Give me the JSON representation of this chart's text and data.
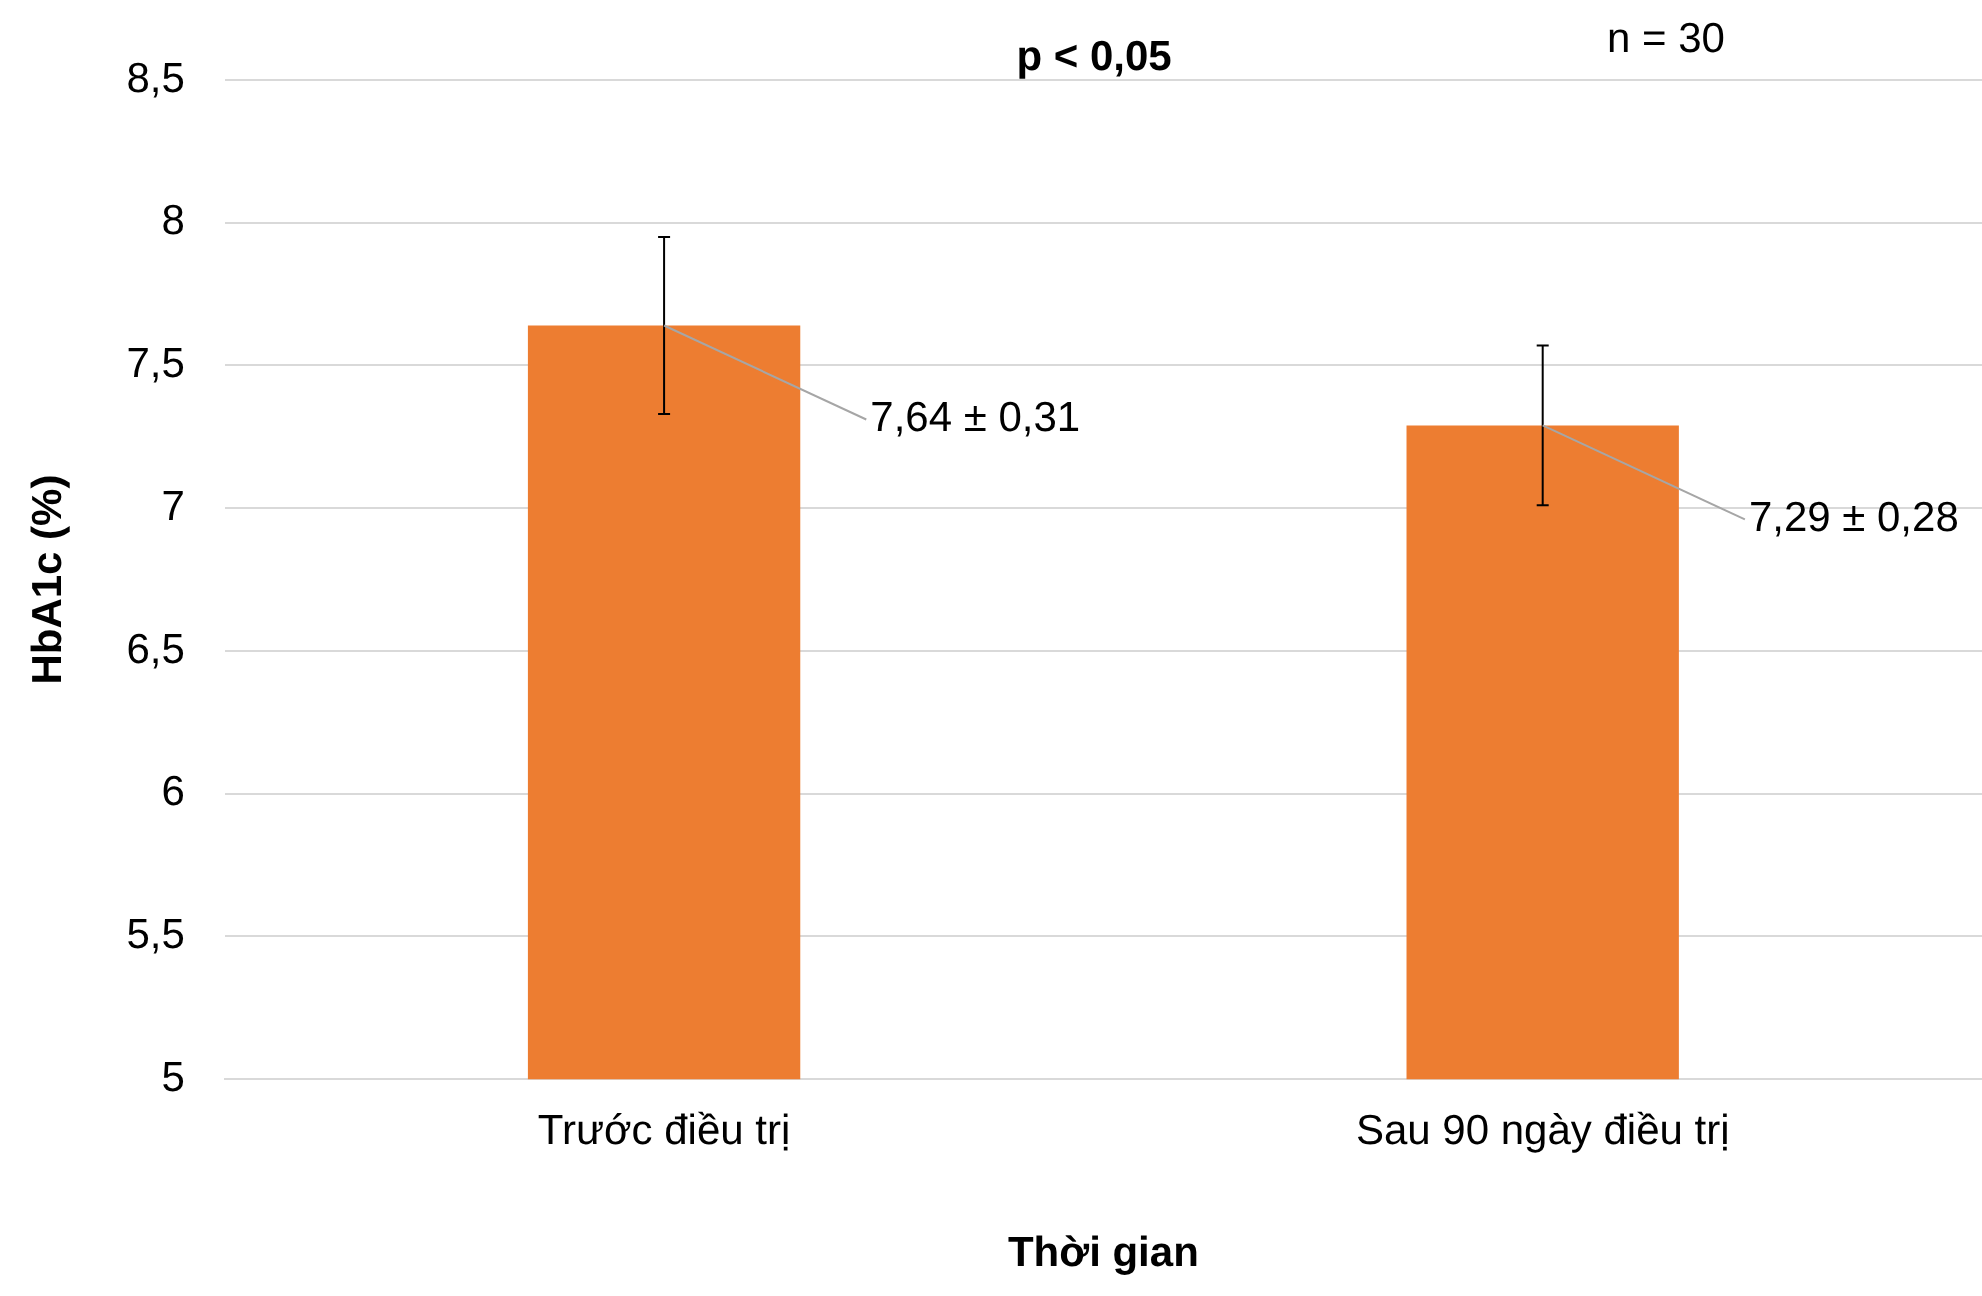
{
  "chart_data": {
    "type": "bar",
    "xlabel": "Thời gian",
    "ylabel": "HbA1c (%)",
    "categories": [
      "Trước điều trị",
      "Sau 90 ngày điều trị"
    ],
    "values": [
      7.64,
      7.29
    ],
    "errors": [
      0.31,
      0.28
    ],
    "value_labels": [
      "7,64 ± 0,31",
      "7,29 ± 0,28"
    ],
    "color": "#ed7d31",
    "ylim": [
      5,
      8.5
    ],
    "yticks": [
      5,
      {
        "value": 5.5,
        "label": "5,5"
      },
      6,
      {
        "value": 6.5,
        "label": "6,5"
      },
      7,
      {
        "value": 7.5,
        "label": "7,5"
      },
      8,
      {
        "value": 8.5,
        "label": "8,5"
      }
    ],
    "grid": "y",
    "legend": false,
    "annotations": [
      "p < 0,05",
      "n = 30"
    ]
  }
}
